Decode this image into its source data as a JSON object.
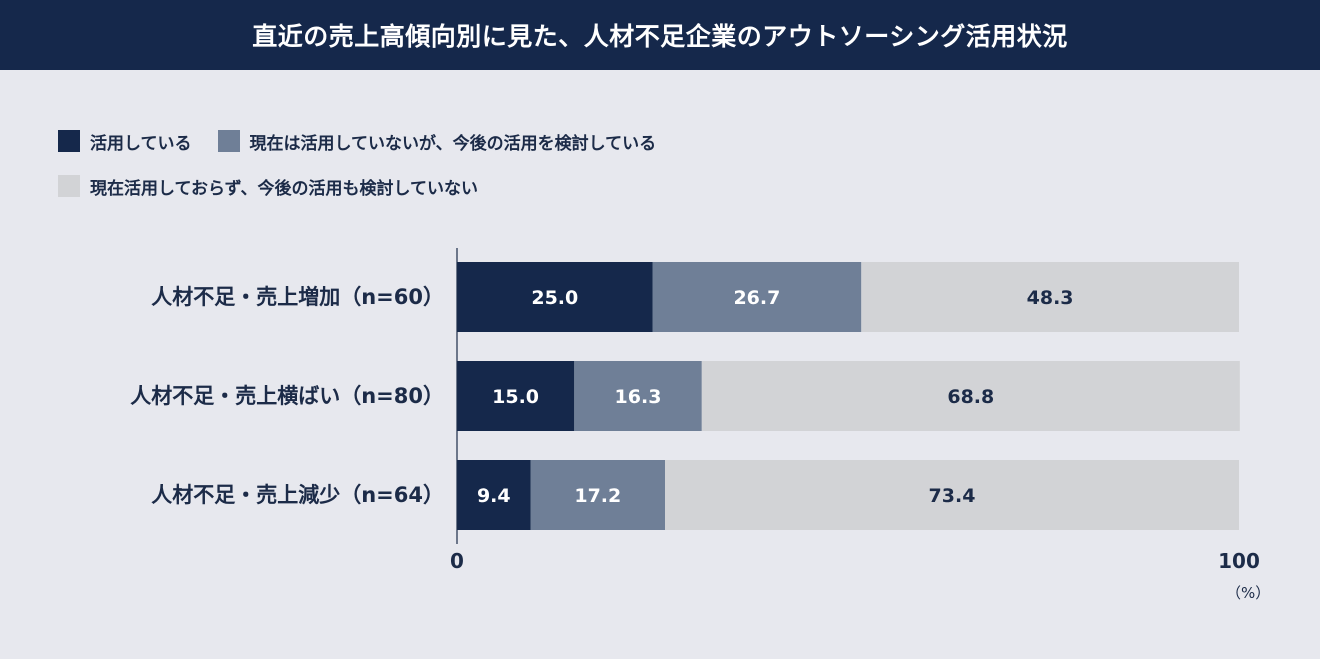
{
  "header": {
    "title": "直近の売上高傾向別に見た、人材不足企業のアウトソーシング活用状況"
  },
  "colors": {
    "series": [
      "#15284b",
      "#6f7f97",
      "#d2d3d6"
    ],
    "label_light": "#ffffff",
    "label_dark": "#1c2b48"
  },
  "chart_data": {
    "type": "bar",
    "orientation": "horizontal",
    "stacked": true,
    "categories": [
      "人材不足・売上増加（n=60）",
      "人材不足・売上横ばい（n=80）",
      "人材不足・売上減少（n=64）"
    ],
    "series": [
      {
        "name": "活用している",
        "values": [
          25.0,
          15.0,
          9.4
        ]
      },
      {
        "name": "現在は活用していないが、今後の活用を検討している",
        "values": [
          26.7,
          16.3,
          17.2
        ]
      },
      {
        "name": "現在活用しておらず、今後の活用も検討していない",
        "values": [
          48.3,
          68.8,
          73.4
        ]
      }
    ],
    "xlim": [
      0,
      100
    ],
    "xticks": [
      "0",
      "100"
    ],
    "xunit": "（%）",
    "legend_position": "top-left",
    "grid": false
  }
}
